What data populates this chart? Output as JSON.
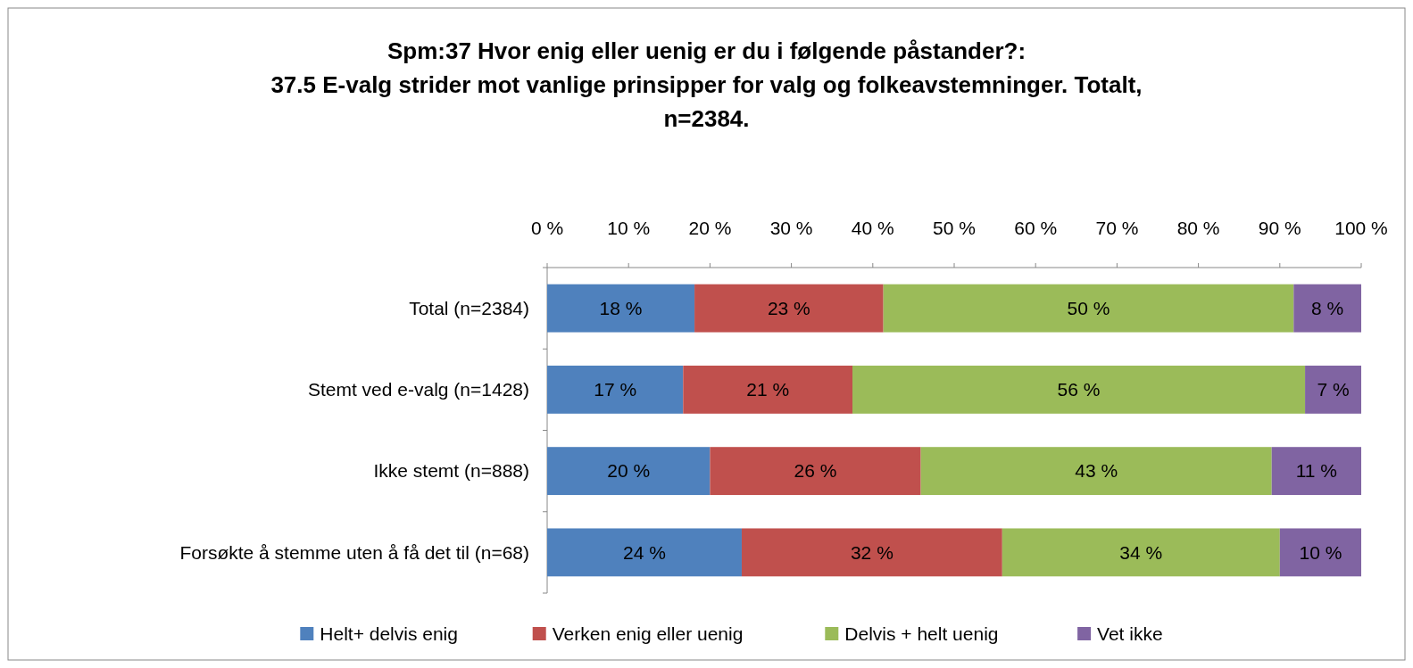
{
  "chart_data": {
    "type": "bar",
    "orientation": "horizontal",
    "stacked": true,
    "title": "Spm:37  Hvor enig eller uenig er du i følgende påstander?:\n37.5 E-valg strider mot vanlige prinsipper for valg og folkeavstemninger. Totalt,\nn=2384.",
    "categories": [
      "Total (n=2384)",
      "Stemt ved e-valg (n=1428)",
      "Ikke stemt (n=888)",
      "Forsøkte å stemme uten å få det til (n=68)"
    ],
    "series": [
      {
        "name": "Helt+ delvis enig",
        "color": "#4f81bd",
        "values": [
          18.1,
          16.7,
          20.0,
          23.9
        ],
        "value_labels": [
          "18 %",
          "17 %",
          "20 %",
          "24 %"
        ]
      },
      {
        "name": "Verken enig eller uenig",
        "color": "#c0504d",
        "values": [
          23.2,
          20.8,
          25.9,
          32.0
        ],
        "value_labels": [
          "23 %",
          "21 %",
          "26 %",
          "32 %"
        ]
      },
      {
        "name": "Delvis + helt uenig",
        "color": "#9bbb59",
        "values": [
          50.4,
          55.6,
          43.1,
          34.1
        ],
        "value_labels": [
          "50 %",
          "56 %",
          "43 %",
          "34 %"
        ]
      },
      {
        "name": "Vet ikke",
        "color": "#8064a2",
        "values": [
          8.3,
          6.9,
          11.0,
          10.0
        ],
        "value_labels": [
          "8 %",
          "7 %",
          "11 %",
          "10 %"
        ]
      }
    ],
    "xlim": [
      0,
      100
    ],
    "xticks": [
      {
        "value": 0,
        "label": "0 %"
      },
      {
        "value": 10,
        "label": "10 %"
      },
      {
        "value": 20,
        "label": "20 %"
      },
      {
        "value": 30,
        "label": "30 %"
      },
      {
        "value": 40,
        "label": "40 %"
      },
      {
        "value": 50,
        "label": "50 %"
      },
      {
        "value": 60,
        "label": "60 %"
      },
      {
        "value": 70,
        "label": "70 %"
      },
      {
        "value": 80,
        "label": "80 %"
      },
      {
        "value": 90,
        "label": "90 %"
      },
      {
        "value": 100,
        "label": "100 %"
      }
    ],
    "grid": false,
    "legend": "bottom"
  }
}
